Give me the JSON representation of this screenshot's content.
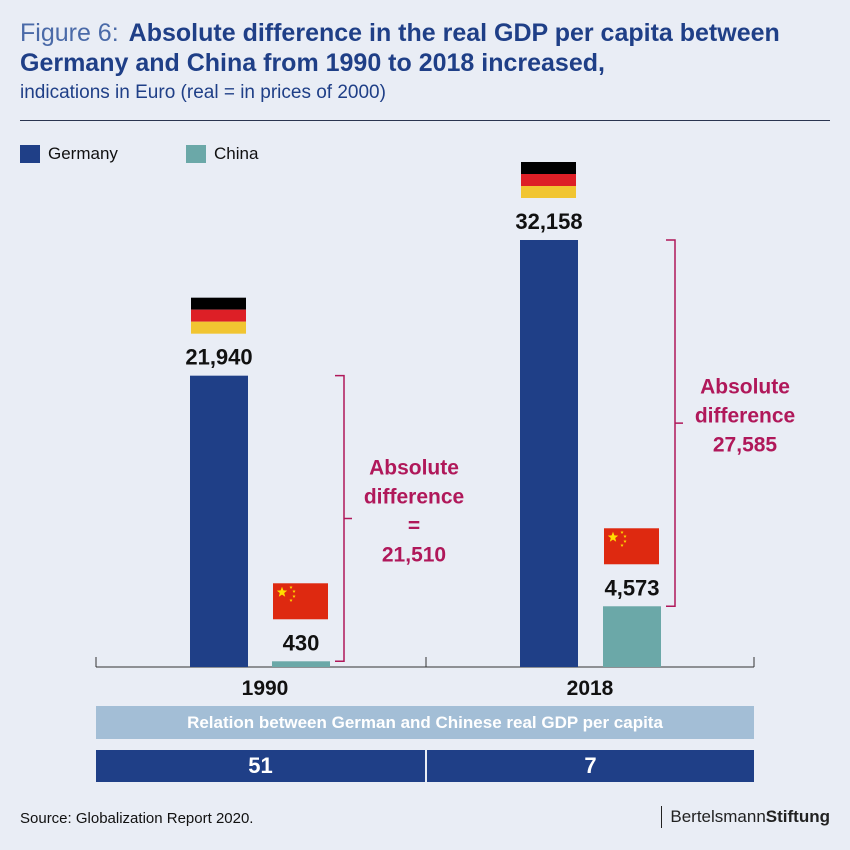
{
  "title": {
    "figure_label": "Figure 6:",
    "line1": "Absolute difference in the real GDP per capita between",
    "line2": "Germany and China from 1990 to 2018 increased,",
    "subtitle": "indications in Euro (real = in prices of 2000)"
  },
  "legend": [
    {
      "label": "Germany",
      "color": "#1f3f87"
    },
    {
      "label": "China",
      "color": "#6ba8a8"
    }
  ],
  "chart_data": {
    "type": "bar",
    "categories": [
      "1990",
      "2018"
    ],
    "series": [
      {
        "name": "Germany",
        "values": [
          21940,
          32158
        ],
        "labels": [
          "21,940",
          "32,158"
        ],
        "color": "#1f3f87",
        "flag": "germany-flag"
      },
      {
        "name": "China",
        "values": [
          430,
          4573
        ],
        "labels": [
          "430",
          "4,573"
        ],
        "color": "#6ba8a8",
        "flag": "china-flag"
      }
    ],
    "annotations": [
      {
        "category": "1990",
        "lines": [
          "Absolute",
          "difference",
          "=",
          "21,510"
        ]
      },
      {
        "category": "2018",
        "lines": [
          "Absolute",
          "difference",
          "27,585"
        ]
      }
    ],
    "annotation_color": "#b0185a",
    "ylim": [
      0,
      32158
    ]
  },
  "ratio": {
    "header": "Relation between German and Chinese real GDP per capita",
    "values": [
      "51",
      "7"
    ]
  },
  "source": "Source: Globalization Report 2020.",
  "logo": {
    "regular": "Bertelsmann",
    "bold": "Stiftung"
  }
}
